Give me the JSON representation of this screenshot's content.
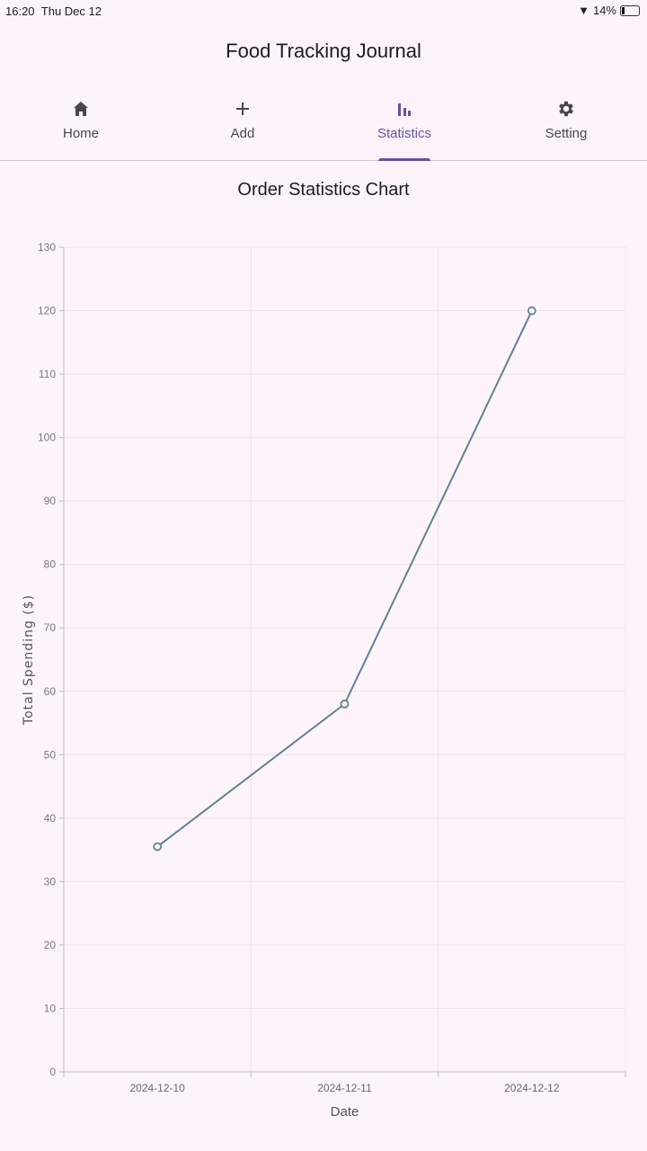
{
  "status_bar": {
    "time": "16:20",
    "date": "Thu Dec 12",
    "battery": "14%"
  },
  "app": {
    "title": "Food Tracking Journal"
  },
  "tabs": [
    {
      "label": "Home",
      "icon": "home-icon"
    },
    {
      "label": "Add",
      "icon": "plus-icon"
    },
    {
      "label": "Statistics",
      "icon": "bar-chart-icon",
      "active": true
    },
    {
      "label": "Setting",
      "icon": "gear-icon"
    }
  ],
  "colors": {
    "accent": "#6750a4",
    "line": "#5f8390"
  },
  "chart_title": "Order Statistics Chart",
  "chart_data": {
    "type": "line",
    "categories": [
      "2024-12-10",
      "2024-12-11",
      "2024-12-12"
    ],
    "values": [
      35.5,
      58,
      120
    ],
    "xlabel": "Date",
    "ylabel": "Total Spending ($)",
    "ylim": [
      0,
      130
    ],
    "yticks": [
      0,
      10,
      20,
      30,
      40,
      50,
      60,
      70,
      80,
      90,
      100,
      110,
      120,
      130
    ],
    "grid": true
  }
}
